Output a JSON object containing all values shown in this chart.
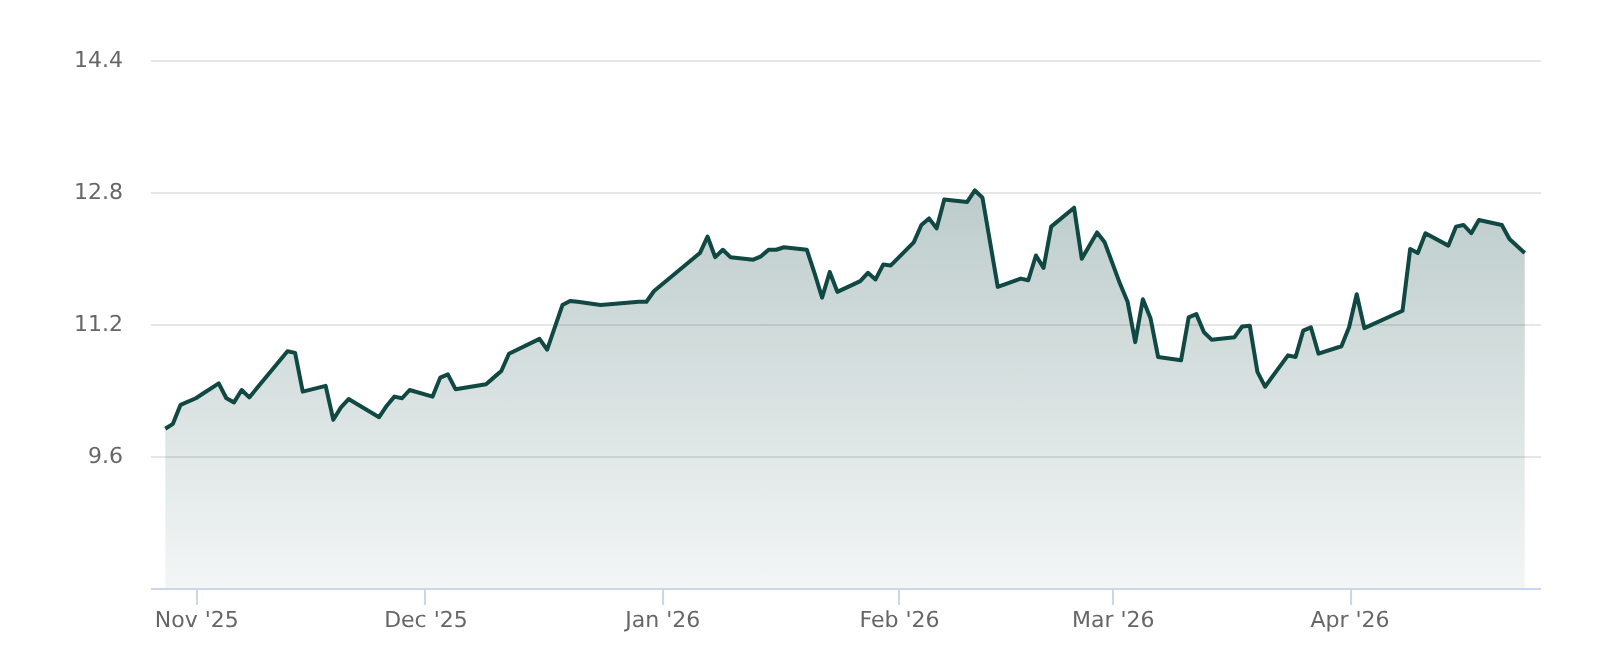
{
  "chart_data": {
    "type": "area",
    "x": [
      "2025-10-28",
      "2025-10-29",
      "2025-10-30",
      "2025-11-01",
      "2025-11-02",
      "2025-11-04",
      "2025-11-05",
      "2025-11-06",
      "2025-11-07",
      "2025-11-08",
      "2025-11-13",
      "2025-11-14",
      "2025-11-15",
      "2025-11-18",
      "2025-11-19",
      "2025-11-20",
      "2025-11-21",
      "2025-11-25",
      "2025-11-26",
      "2025-11-27",
      "2025-11-28",
      "2025-11-29",
      "2025-12-02",
      "2025-12-03",
      "2025-12-04",
      "2025-12-05",
      "2025-12-09",
      "2025-12-10",
      "2025-12-11",
      "2025-12-12",
      "2025-12-16",
      "2025-12-17",
      "2025-12-19",
      "2025-12-20",
      "2025-12-21",
      "2025-12-24",
      "2025-12-29",
      "2025-12-30",
      "2025-12-31",
      "2026-01-06",
      "2026-01-07",
      "2026-01-08",
      "2026-01-09",
      "2026-01-10",
      "2026-01-13",
      "2026-01-14",
      "2026-01-15",
      "2026-01-16",
      "2026-01-17",
      "2026-01-20",
      "2026-01-21",
      "2026-01-22",
      "2026-01-23",
      "2026-01-24",
      "2026-01-27",
      "2026-01-28",
      "2026-01-29",
      "2026-01-30",
      "2026-01-31",
      "2026-02-03",
      "2026-02-04",
      "2026-02-05",
      "2026-02-06",
      "2026-02-07",
      "2026-02-10",
      "2026-02-11",
      "2026-02-12",
      "2026-02-14",
      "2026-02-17",
      "2026-02-18",
      "2026-02-19",
      "2026-02-20",
      "2026-02-21",
      "2026-02-24",
      "2026-02-25",
      "2026-02-27",
      "2026-02-28",
      "2026-03-02",
      "2026-03-03",
      "2026-03-04",
      "2026-03-05",
      "2026-03-06",
      "2026-03-07",
      "2026-03-10",
      "2026-03-11",
      "2026-03-12",
      "2026-03-13",
      "2026-03-14",
      "2026-03-17",
      "2026-03-18",
      "2026-03-19",
      "2026-03-20",
      "2026-03-21",
      "2026-03-24",
      "2026-03-25",
      "2026-03-26",
      "2026-03-27",
      "2026-03-28",
      "2026-03-31",
      "2026-04-01",
      "2026-04-02",
      "2026-04-03",
      "2026-04-08",
      "2026-04-09",
      "2026-04-10",
      "2026-04-11",
      "2026-04-14",
      "2026-04-15",
      "2026-04-16",
      "2026-04-17",
      "2026-04-18",
      "2026-04-21",
      "2026-04-22",
      "2026-04-24"
    ],
    "series": [
      {
        "color": "#104843",
        "values": [
          9.93,
          9.99,
          10.22,
          10.3,
          10.36,
          10.48,
          10.3,
          10.25,
          10.4,
          10.31,
          10.87,
          10.85,
          10.38,
          10.45,
          10.04,
          10.19,
          10.29,
          10.07,
          10.21,
          10.32,
          10.3,
          10.4,
          10.32,
          10.55,
          10.59,
          10.41,
          10.47,
          10.55,
          10.63,
          10.84,
          11.02,
          10.89,
          11.43,
          11.48,
          11.47,
          11.43,
          11.47,
          11.47,
          11.6,
          12.06,
          12.26,
          12.01,
          12.1,
          12.01,
          11.98,
          12.02,
          12.1,
          12.1,
          12.13,
          12.1,
          11.82,
          11.52,
          11.83,
          11.59,
          11.72,
          11.82,
          11.74,
          11.92,
          11.91,
          12.19,
          12.4,
          12.48,
          12.36,
          12.71,
          12.68,
          12.82,
          12.73,
          11.65,
          11.75,
          11.73,
          12.03,
          11.88,
          12.38,
          12.61,
          11.99,
          12.31,
          12.19,
          11.69,
          11.47,
          10.98,
          11.5,
          11.27,
          10.8,
          10.76,
          11.28,
          11.32,
          11.1,
          11.01,
          11.04,
          11.17,
          11.18,
          10.62,
          10.44,
          10.82,
          10.8,
          11.12,
          11.16,
          10.84,
          10.93,
          11.16,
          11.56,
          11.15,
          11.36,
          12.11,
          12.06,
          12.3,
          12.15,
          12.38,
          12.4,
          12.3,
          12.46,
          12.4,
          12.23,
          12.06
        ]
      }
    ],
    "xlim": [
      "2025-10-26",
      "2026-04-26"
    ],
    "xticks": [
      {
        "value": "2025-11-01",
        "label": "Nov '25"
      },
      {
        "value": "2025-12-01",
        "label": "Dec '25"
      },
      {
        "value": "2026-01-01",
        "label": "Jan '26"
      },
      {
        "value": "2026-02-01",
        "label": "Feb '26"
      },
      {
        "value": "2026-03-01",
        "label": "Mar '26"
      },
      {
        "value": "2026-04-01",
        "label": "Apr '26"
      }
    ],
    "ylim": [
      8,
      14.4
    ],
    "yticks": [
      9.6,
      11.2,
      12.8,
      14.4
    ],
    "grid": "y"
  }
}
